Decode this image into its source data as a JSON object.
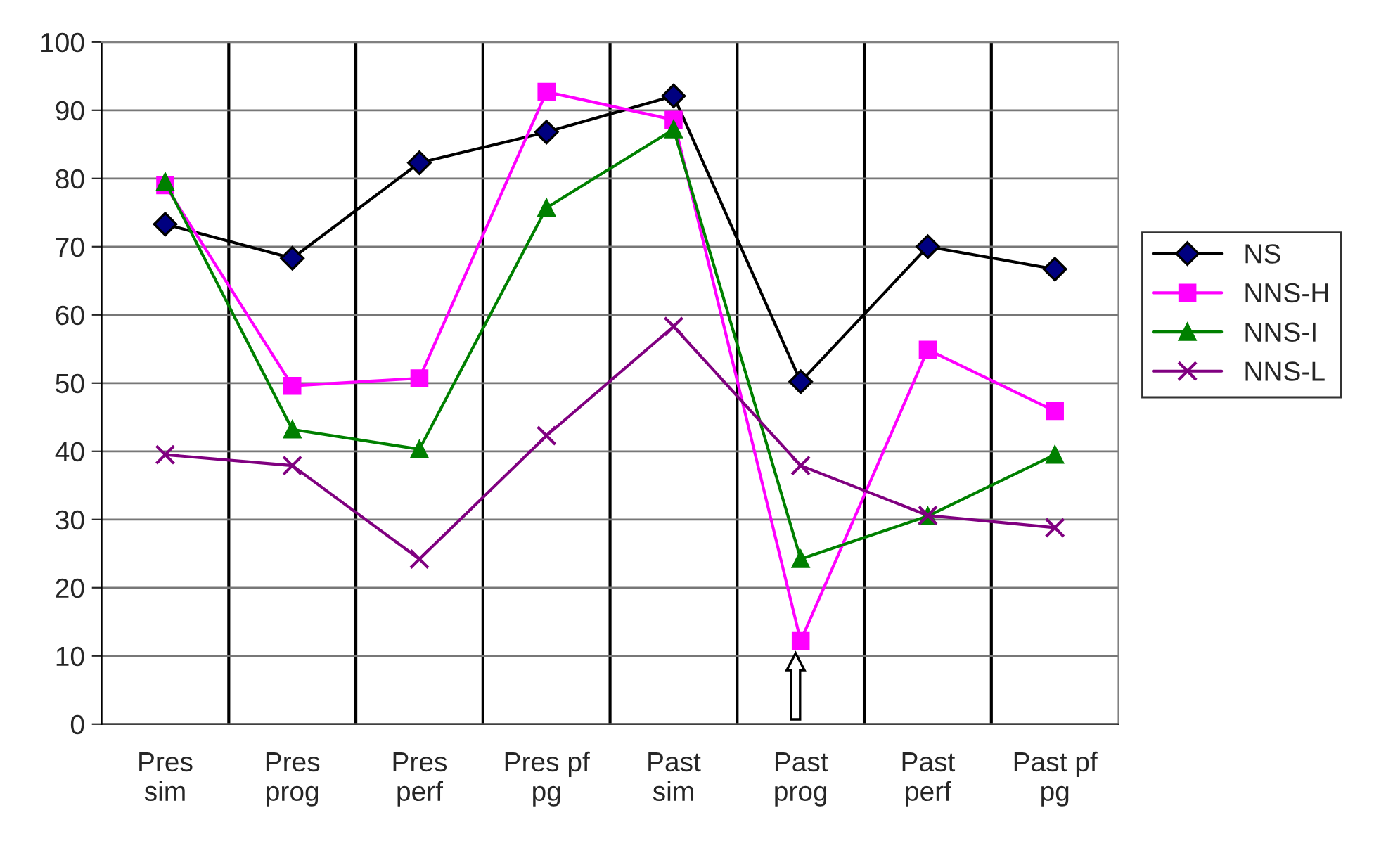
{
  "chart_data": {
    "type": "line",
    "categories": [
      "Pres\nsim",
      "Pres\nprog",
      "Pres\nperf",
      "Pres pf\npg",
      "Past\nsim",
      "Past\nprog",
      "Past\nperf",
      "Past pf\npg"
    ],
    "series": [
      {
        "name": "NS",
        "color": "#000000",
        "marker": "diamond",
        "values": [
          73.3,
          68.3,
          82.3,
          86.8,
          92.1,
          50.2,
          70.0,
          66.7
        ]
      },
      {
        "name": "NNS-H",
        "color": "#ff00ff",
        "marker": "square",
        "values": [
          79.0,
          49.6,
          50.7,
          92.7,
          88.6,
          12.2,
          54.9,
          45.9
        ]
      },
      {
        "name": "NNS-I",
        "color": "#008000",
        "marker": "triangle",
        "values": [
          79.5,
          43.2,
          40.3,
          75.7,
          87.2,
          24.2,
          30.5,
          39.5
        ]
      },
      {
        "name": "NNS-L",
        "color": "#800080",
        "marker": "cross",
        "values": [
          39.5,
          37.9,
          24.2,
          42.3,
          58.3,
          37.9,
          30.6,
          28.8
        ]
      }
    ],
    "ylim": [
      0,
      100
    ],
    "yticks": [
      0,
      10,
      20,
      30,
      40,
      50,
      60,
      70,
      80,
      90,
      100
    ],
    "grid": true,
    "legend": "right",
    "line_style": "solid"
  }
}
